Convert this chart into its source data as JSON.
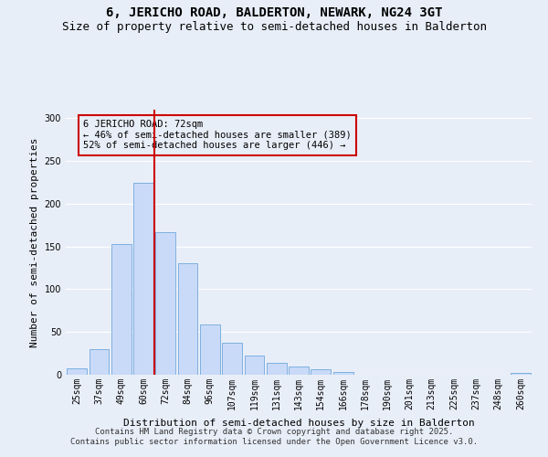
{
  "title": "6, JERICHO ROAD, BALDERTON, NEWARK, NG24 3GT",
  "subtitle": "Size of property relative to semi-detached houses in Balderton",
  "xlabel": "Distribution of semi-detached houses by size in Balderton",
  "ylabel": "Number of semi-detached properties",
  "categories": [
    "25sqm",
    "37sqm",
    "49sqm",
    "60sqm",
    "72sqm",
    "84sqm",
    "96sqm",
    "107sqm",
    "119sqm",
    "131sqm",
    "143sqm",
    "154sqm",
    "166sqm",
    "178sqm",
    "190sqm",
    "201sqm",
    "213sqm",
    "225sqm",
    "237sqm",
    "248sqm",
    "260sqm"
  ],
  "values": [
    7,
    30,
    153,
    224,
    167,
    130,
    59,
    37,
    22,
    14,
    10,
    6,
    3,
    0,
    0,
    0,
    0,
    0,
    0,
    0,
    2
  ],
  "bar_color": "#c9daf8",
  "bar_edge_color": "#6fa8dc",
  "vline_color": "#cc0000",
  "vline_index": 3.5,
  "annotation_box_text": "6 JERICHO ROAD: 72sqm\n← 46% of semi-detached houses are smaller (389)\n52% of semi-detached houses are larger (446) →",
  "annotation_box_edge_color": "#cc0000",
  "footer_line1": "Contains HM Land Registry data © Crown copyright and database right 2025.",
  "footer_line2": "Contains public sector information licensed under the Open Government Licence v3.0.",
  "ylim": [
    0,
    310
  ],
  "bg_color": "#e8eef8",
  "grid_color": "#ffffff",
  "title_fontsize": 10,
  "subtitle_fontsize": 9,
  "axis_label_fontsize": 8,
  "tick_fontsize": 7,
  "annotation_fontsize": 7.5,
  "footer_fontsize": 6.5
}
